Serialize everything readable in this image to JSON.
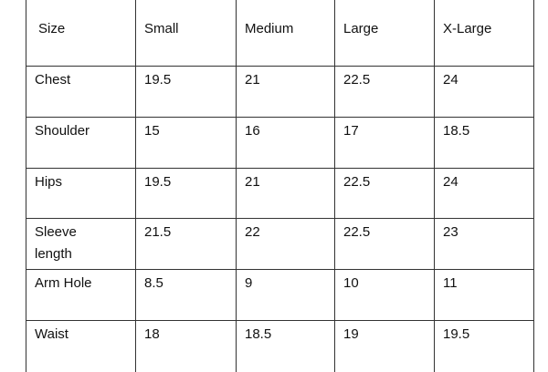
{
  "table": {
    "header": [
      "Size",
      "Small",
      "Medium",
      "Large",
      "X-Large"
    ],
    "rows": [
      [
        "Chest",
        "19.5",
        "21",
        "22.5",
        "24"
      ],
      [
        "Shoulder",
        "15",
        "16",
        "17",
        "18.5"
      ],
      [
        "Hips",
        "19.5",
        "21",
        "22.5",
        "24"
      ],
      [
        "Sleeve length",
        "21.5",
        "22",
        "22.5",
        "23"
      ],
      [
        "Arm Hole",
        "8.5",
        "9",
        "10",
        "11"
      ],
      [
        "Waist",
        "18",
        "18.5",
        "19",
        "19.5"
      ]
    ]
  }
}
